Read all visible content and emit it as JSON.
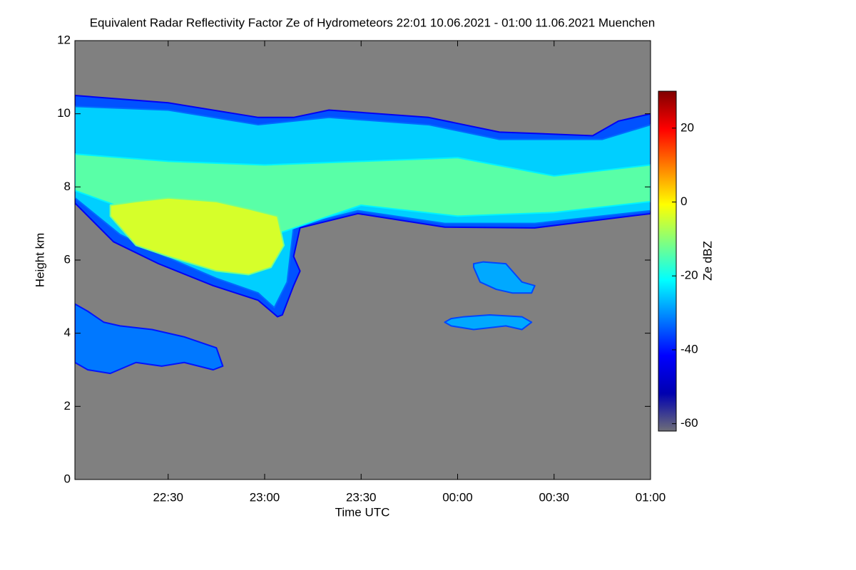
{
  "chart_data": {
    "type": "heatmap",
    "title": "Equivalent Radar Reflectivity Factor Ze of Hydrometeors   22:01 10.06.2021 - 01:00 11.06.2021 Muenchen",
    "x_label": "Time UTC",
    "y_label": "Height km",
    "colorbar_label": "Ze dBZ",
    "xlim": [
      1,
      180
    ],
    "xticks": [
      {
        "value": 30,
        "label": "22:30"
      },
      {
        "value": 60,
        "label": "23:00"
      },
      {
        "value": 90,
        "label": "23:30"
      },
      {
        "value": 120,
        "label": "00:00"
      },
      {
        "value": 150,
        "label": "00:30"
      },
      {
        "value": 180,
        "label": "01:00"
      }
    ],
    "ylim": [
      0,
      12
    ],
    "yticks": [
      0,
      2,
      4,
      6,
      8,
      10,
      12
    ],
    "clim": [
      -62,
      30
    ],
    "cticks": [
      -60,
      -40,
      -20,
      0,
      20
    ],
    "background": "#808080",
    "colormap": [
      "#6e6e78",
      "#0000b0",
      "#0000ff",
      "#0080ff",
      "#00ffff",
      "#80ff80",
      "#ffff00",
      "#ff8000",
      "#ff0000",
      "#800000"
    ],
    "echoes": [
      {
        "value": -35,
        "x": [
          1,
          13,
          27,
          44,
          58,
          64,
          65.5,
          69,
          71,
          69,
          71,
          89,
          116,
          144,
          180,
          180,
          170,
          162,
          133,
          111,
          80,
          69,
          58,
          30,
          1
        ],
        "y": [
          7.56,
          6.5,
          5.9,
          5.3,
          4.9,
          4.45,
          4.5,
          5.3,
          5.7,
          6.1,
          6.88,
          7.27,
          6.9,
          6.88,
          7.27,
          10.0,
          9.8,
          9.4,
          9.5,
          9.9,
          10.1,
          9.9,
          9.9,
          10.3,
          10.5
        ]
      },
      {
        "value": -25,
        "x": [
          1,
          15,
          29,
          45,
          58,
          63,
          67,
          69,
          89,
          116,
          144,
          180,
          180,
          165,
          133,
          111,
          80,
          58,
          30,
          1
        ],
        "y": [
          7.7,
          6.7,
          6.1,
          5.5,
          5.1,
          4.7,
          5.4,
          6.9,
          7.35,
          7.0,
          7.0,
          7.35,
          9.7,
          9.3,
          9.3,
          9.7,
          9.9,
          9.7,
          10.1,
          10.2
        ]
      },
      {
        "value": -14,
        "x": [
          1,
          20,
          40,
          60,
          90,
          120,
          150,
          180,
          180,
          150,
          120,
          90,
          60,
          30,
          1
        ],
        "y": [
          7.9,
          7.3,
          6.9,
          6.6,
          7.5,
          7.2,
          7.3,
          7.6,
          8.6,
          8.3,
          8.8,
          8.7,
          8.6,
          8.7,
          8.9
        ]
      },
      {
        "value": -4,
        "x": [
          12,
          20,
          30,
          45,
          55,
          62,
          66,
          64,
          55,
          45,
          30,
          20,
          12
        ],
        "y": [
          7.2,
          6.4,
          6.1,
          5.7,
          5.6,
          5.8,
          6.4,
          7.2,
          7.4,
          7.6,
          7.7,
          7.6,
          7.5
        ]
      },
      {
        "value": -32,
        "x": [
          1,
          5,
          12,
          20,
          28,
          35,
          44,
          47,
          45,
          35,
          25,
          15,
          10,
          5,
          1
        ],
        "y": [
          3.2,
          3.0,
          2.9,
          3.2,
          3.1,
          3.2,
          3.0,
          3.1,
          3.6,
          3.9,
          4.1,
          4.2,
          4.3,
          4.6,
          4.8
        ]
      },
      {
        "value": -28,
        "x": [
          116,
          118,
          125,
          135,
          140,
          143,
          140,
          130,
          122,
          118
        ],
        "y": [
          4.3,
          4.2,
          4.1,
          4.2,
          4.1,
          4.3,
          4.45,
          4.5,
          4.45,
          4.4
        ]
      },
      {
        "value": -28,
        "x": [
          125,
          127,
          132,
          137,
          143,
          144,
          140,
          135,
          128,
          125
        ],
        "y": [
          5.8,
          5.4,
          5.2,
          5.1,
          5.1,
          5.3,
          5.4,
          5.9,
          5.95,
          5.9
        ]
      }
    ]
  }
}
